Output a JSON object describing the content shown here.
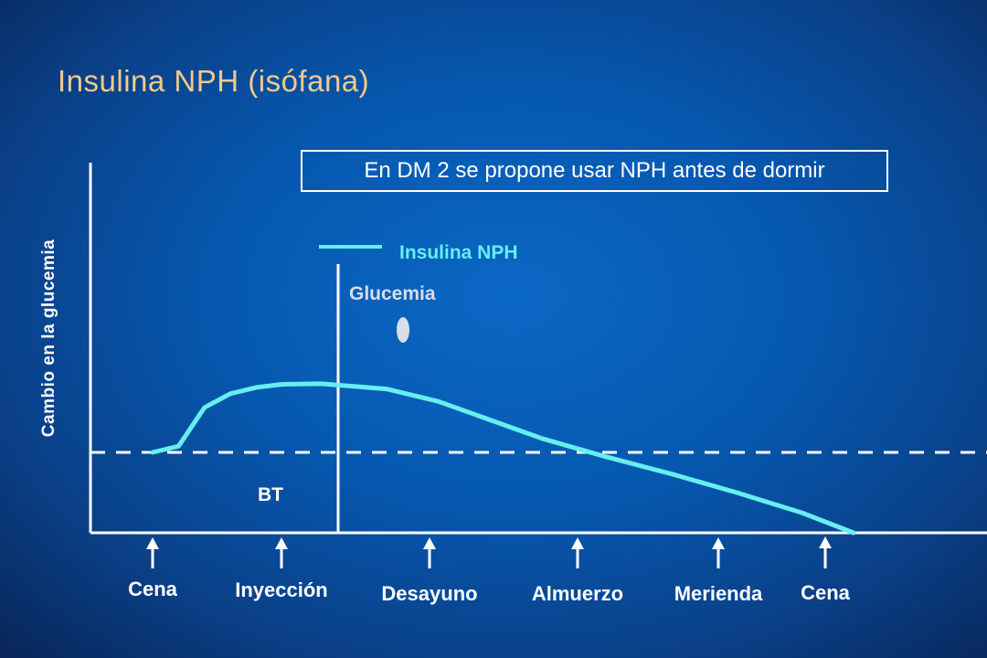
{
  "slide": {
    "title": "Insulina NPH (isófana)",
    "note": "En DM 2 se propone usar NPH antes de dormir"
  },
  "colors": {
    "title": "#f3c98a",
    "insulin_curve": "#66eef0",
    "glucemia_marker": "#d8dde6",
    "axis": "#ffffff"
  },
  "chart_data": {
    "type": "line",
    "ylabel": "Cambio en la glucemia",
    "xlabel": "",
    "categories": [
      "Cena",
      "Inyección",
      "Desayuno",
      "Almuerzo",
      "Merienda",
      "Cena"
    ],
    "baseline_label": "BT",
    "legend": [
      {
        "name": "Insulina NPH",
        "marker": "line",
        "color": "#66eef0"
      },
      {
        "name": "Glucemia",
        "marker": "dot",
        "color": "#d8dde6"
      }
    ],
    "series": [
      {
        "name": "Insulina NPH",
        "x": [
          1.0,
          1.2,
          1.4,
          1.6,
          1.8,
          2.0,
          2.3,
          2.8,
          3.2,
          3.6,
          4.0,
          4.5,
          5.0,
          5.5,
          6.0,
          6.4
        ],
        "y": [
          0.0,
          0.2,
          1.45,
          1.9,
          2.1,
          2.2,
          2.22,
          2.05,
          1.65,
          1.05,
          0.45,
          -0.15,
          -0.7,
          -1.3,
          -1.95,
          -2.6
        ]
      }
    ],
    "xlim": [
      0,
      6.4
    ],
    "ylim": [
      -2.6,
      6.2
    ],
    "grid": false,
    "baseline_dashed": true
  }
}
